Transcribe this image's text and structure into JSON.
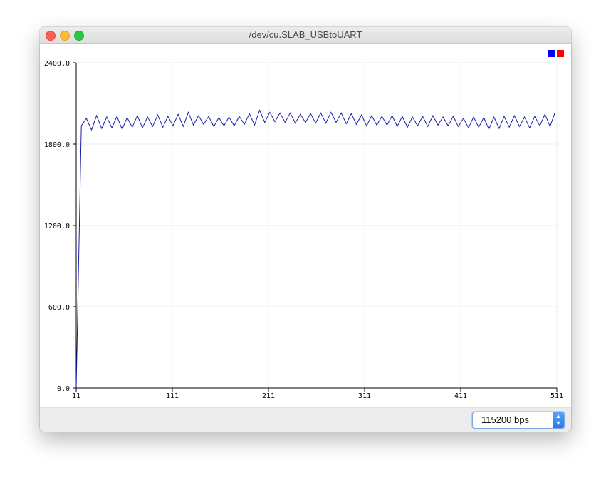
{
  "window": {
    "title": "/dev/cu.SLAB_USBtoUART"
  },
  "footer": {
    "baud_rate": "115200 bps"
  },
  "legend": {
    "swatches": [
      "#0000ff",
      "#ff0000"
    ]
  },
  "colors": {
    "series": "#1a1aa6",
    "grid": "#ececec",
    "axis": "#000000"
  },
  "chart_data": {
    "type": "line",
    "xlim": [
      11,
      511
    ],
    "ylim": [
      0,
      2400
    ],
    "x_ticks": [
      "11",
      "111",
      "211",
      "311",
      "411",
      "511"
    ],
    "y_ticks": [
      "0.0",
      "600.0",
      "1200.0",
      "1800.0",
      "2400.0"
    ],
    "grid": true,
    "legend_position": "top-right",
    "series": [
      {
        "color": "#1a1aa6",
        "values": [
          0,
          1935,
          1990,
          1905,
          2010,
          1915,
          2000,
          1920,
          2005,
          1910,
          1995,
          1925,
          2010,
          1920,
          2000,
          1930,
          2015,
          1925,
          2005,
          1935,
          2020,
          1930,
          2035,
          1940,
          2010,
          1945,
          2005,
          1930,
          1995,
          1935,
          2000,
          1935,
          2005,
          1945,
          2025,
          1940,
          2050,
          1960,
          2035,
          1965,
          2030,
          1960,
          2030,
          1955,
          2020,
          1960,
          2025,
          1955,
          2030,
          1955,
          2035,
          1960,
          2030,
          1950,
          2025,
          1945,
          2015,
          1935,
          2010,
          1940,
          2005,
          1940,
          2010,
          1930,
          2005,
          1925,
          2000,
          1935,
          2005,
          1930,
          2010,
          1940,
          2000,
          1935,
          2005,
          1930,
          1990,
          1920,
          2000,
          1925,
          1995,
          1910,
          2000,
          1915,
          2005,
          1925,
          2010,
          1930,
          2000,
          1920,
          2005,
          1935,
          2020,
          1930,
          2035
        ],
        "x_step": 5.3
      }
    ]
  }
}
